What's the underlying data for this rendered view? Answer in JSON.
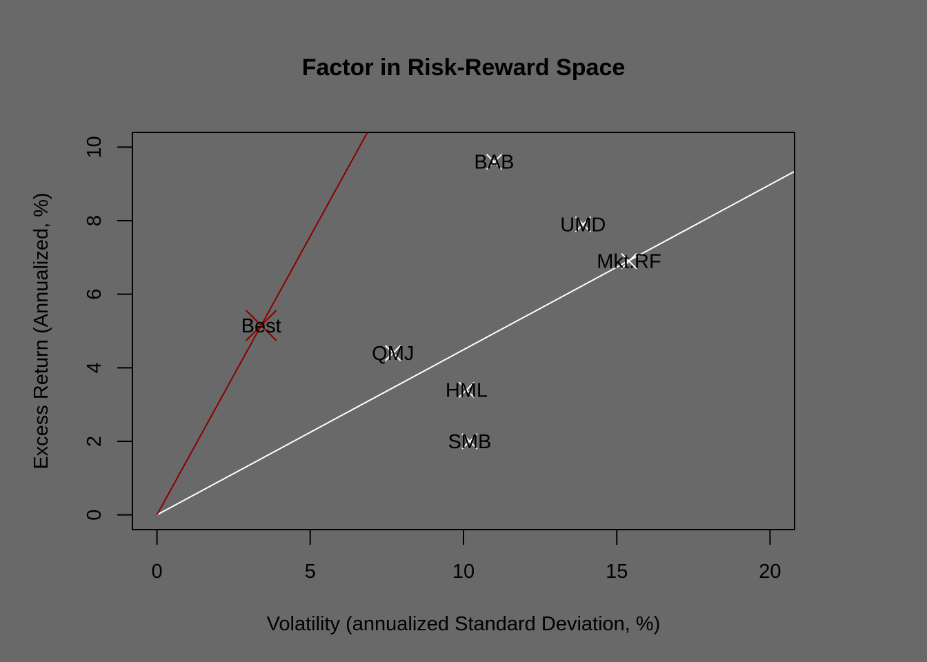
{
  "chart_data": {
    "type": "scatter",
    "title": "Factor in Risk-Reward Space",
    "xlabel": "Volatility (annualized Standard Deviation, %)",
    "ylabel": "Excess Return (Annualized, %)",
    "xlim": [
      -0.8,
      20.8
    ],
    "ylim": [
      -0.4,
      10.4
    ],
    "xticks": [
      0,
      5,
      10,
      15,
      20
    ],
    "yticks": [
      0,
      2,
      4,
      6,
      8,
      10
    ],
    "grid": false,
    "points": [
      {
        "label": "BAB",
        "x": 11.0,
        "y": 9.6,
        "color": "#ffffff"
      },
      {
        "label": "UMD",
        "x": 13.9,
        "y": 7.9,
        "color": "#ffffff"
      },
      {
        "label": "Mkt.RF",
        "x": 15.4,
        "y": 6.9,
        "color": "#ffffff"
      },
      {
        "label": "QMJ",
        "x": 7.7,
        "y": 4.4,
        "color": "#ffffff"
      },
      {
        "label": "HML",
        "x": 10.1,
        "y": 3.4,
        "color": "#ffffff"
      },
      {
        "label": "SMB",
        "x": 10.2,
        "y": 2.0,
        "color": "#ffffff"
      },
      {
        "label": "Best",
        "x": 3.4,
        "y": 5.15,
        "color": "#8b0000",
        "large": true
      }
    ],
    "lines": [
      {
        "name": "market",
        "from": [
          0,
          0
        ],
        "slope": 0.449,
        "color": "#ffffff"
      },
      {
        "name": "best",
        "from": [
          0,
          0
        ],
        "slope": 1.515,
        "color": "#8b0000"
      }
    ]
  }
}
